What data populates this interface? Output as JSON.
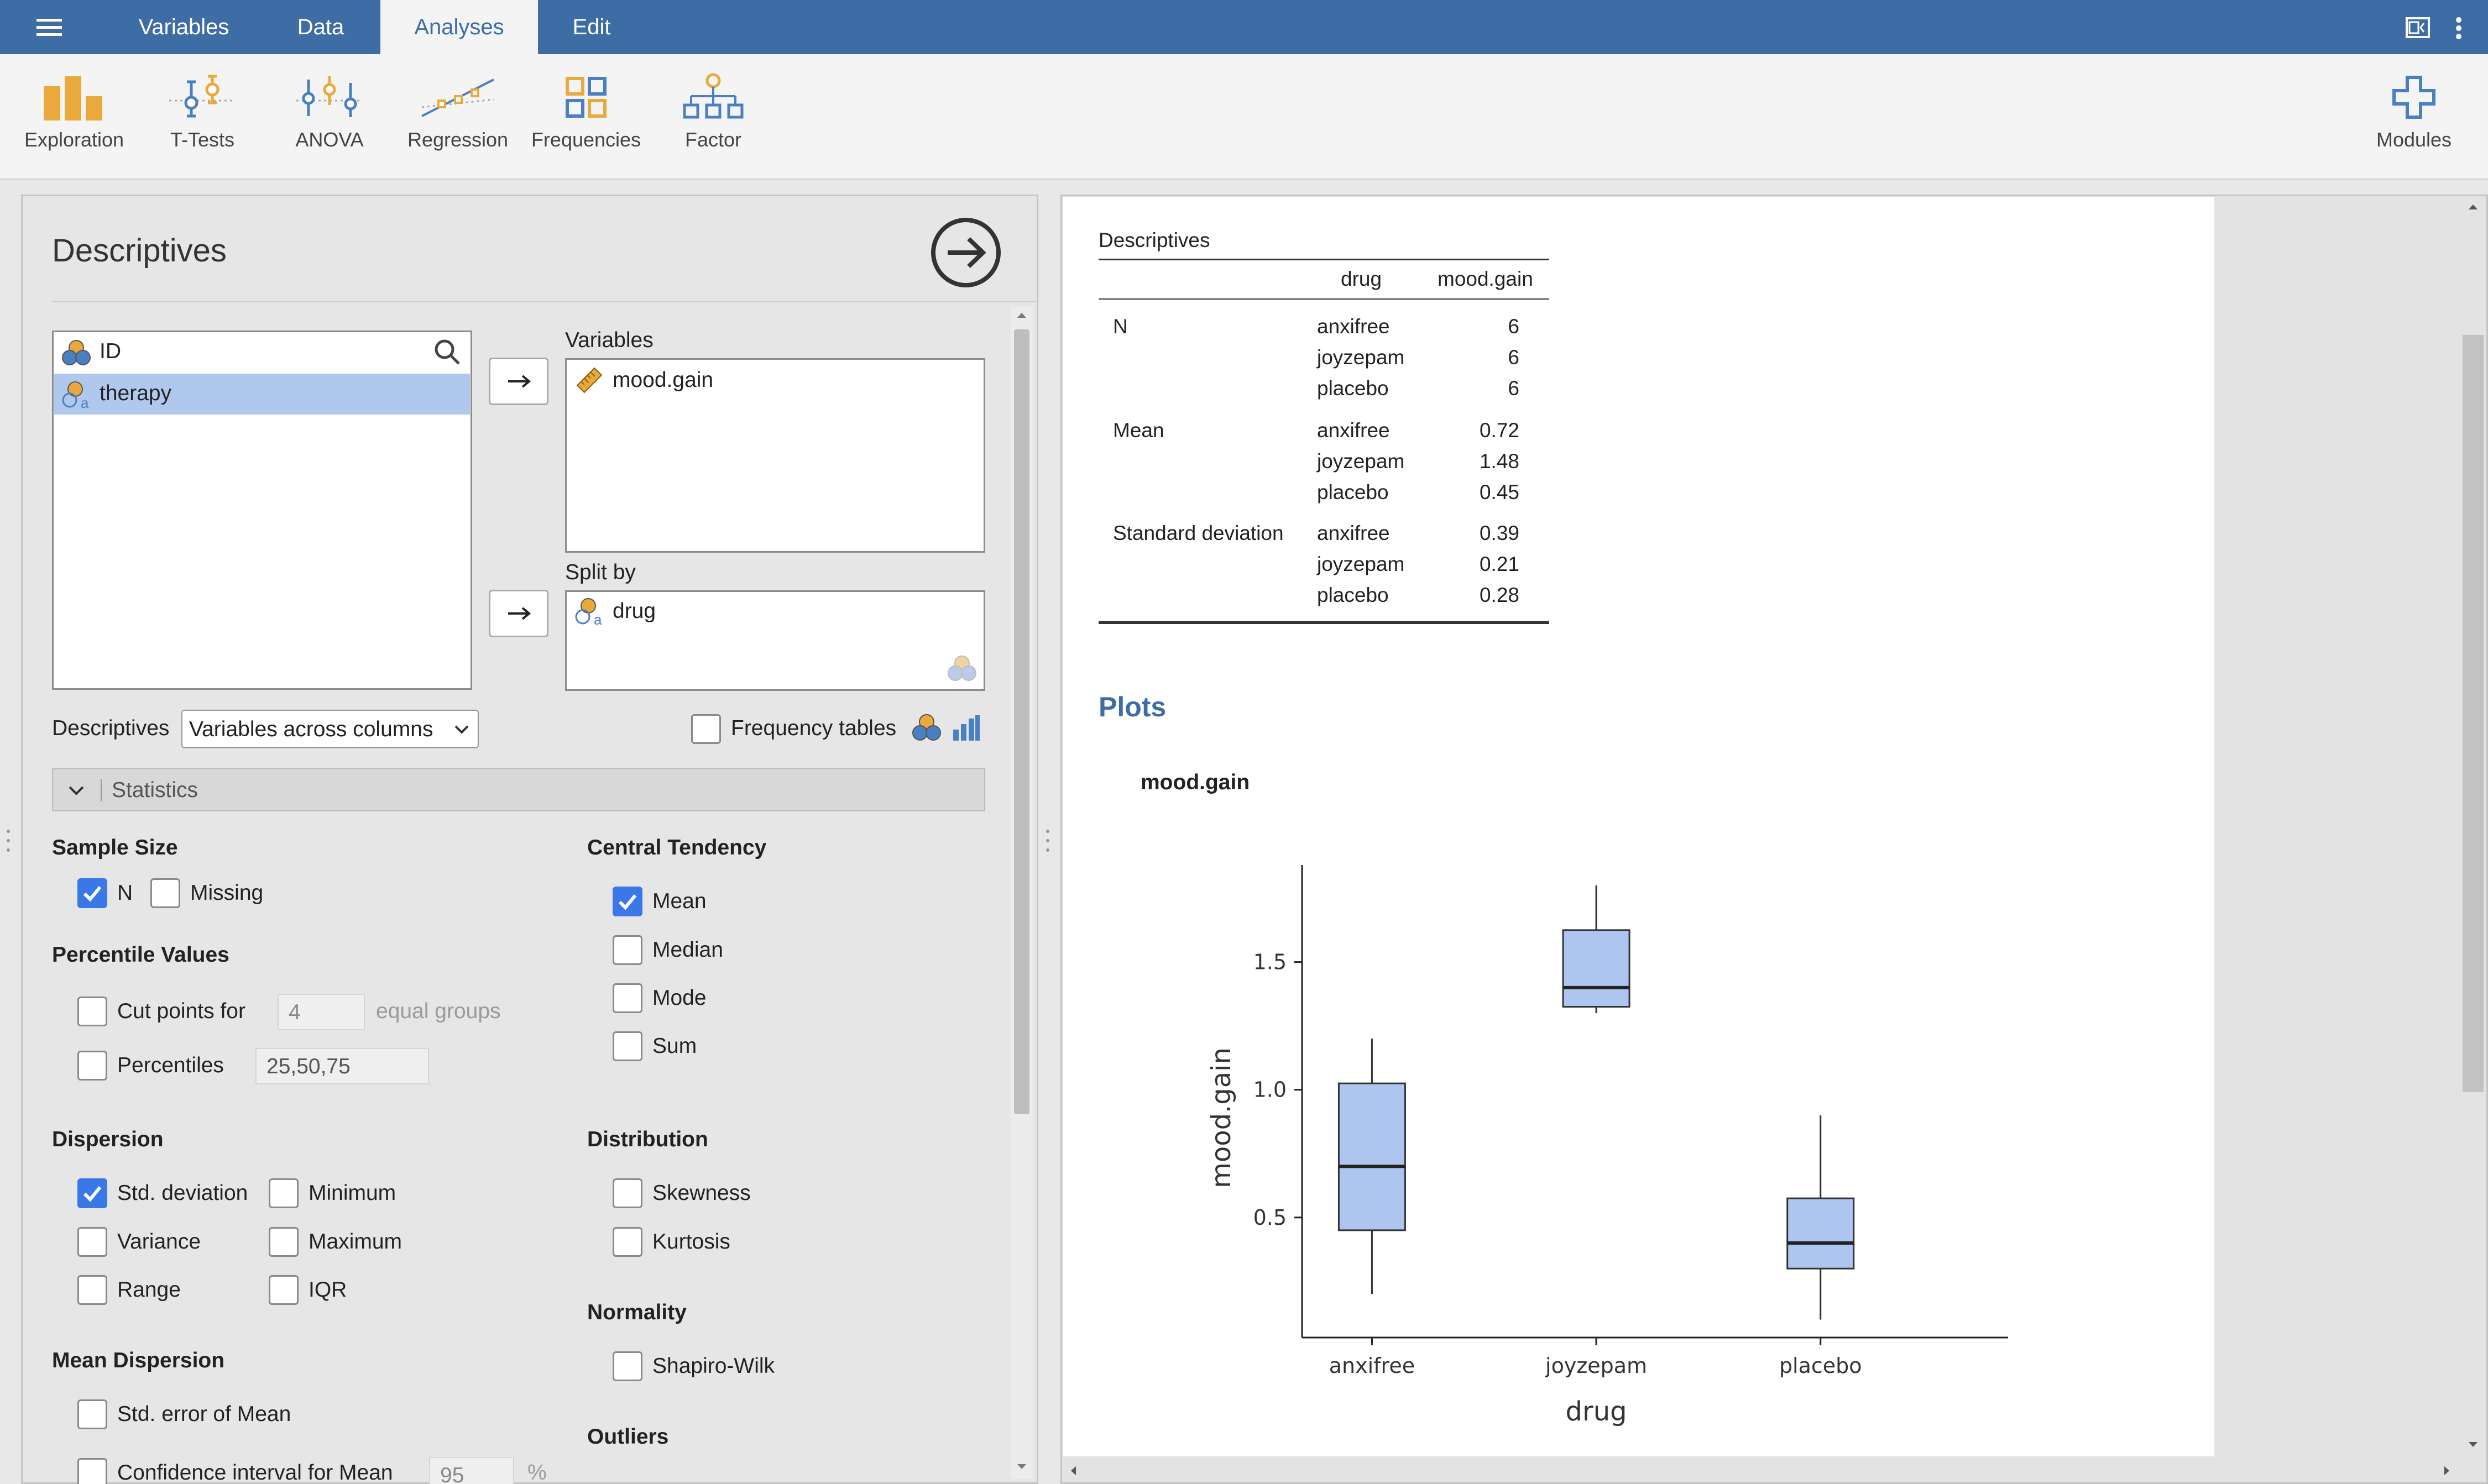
{
  "topbar": {
    "tabs": [
      "Variables",
      "Data",
      "Analyses",
      "Edit"
    ],
    "active_tab": "Analyses"
  },
  "ribbon": {
    "buttons": [
      "Exploration",
      "T-Tests",
      "ANOVA",
      "Regression",
      "Frequencies",
      "Factor"
    ],
    "modules_label": "Modules"
  },
  "options": {
    "title": "Descriptives",
    "source_list": {
      "items": [
        {
          "label": "ID",
          "selected": false
        },
        {
          "label": "therapy",
          "selected": true
        }
      ]
    },
    "variables_label": "Variables",
    "variables_items": [
      "mood.gain"
    ],
    "split_label": "Split by",
    "split_items": [
      "drug"
    ],
    "descriptives_label": "Descriptives",
    "descriptives_select": "Variables across columns",
    "frequency_tables_label": "Frequency tables",
    "frequency_tables_checked": false,
    "statistics_header": "Statistics",
    "sample_size": {
      "title": "Sample Size",
      "n_label": "N",
      "n_checked": true,
      "missing_label": "Missing",
      "missing_checked": false
    },
    "percentile_values": {
      "title": "Percentile Values",
      "cut_points_label": "Cut points for",
      "cut_points_value": "4",
      "cut_points_suffix": "equal groups",
      "percentiles_label": "Percentiles",
      "percentiles_value": "25,50,75"
    },
    "dispersion": {
      "title": "Dispersion",
      "std_label": "Std. deviation",
      "std_checked": true,
      "minimum_label": "Minimum",
      "variance_label": "Variance",
      "maximum_label": "Maximum",
      "range_label": "Range",
      "iqr_label": "IQR"
    },
    "mean_dispersion": {
      "title": "Mean Dispersion",
      "se_label": "Std. error of Mean",
      "ci_label": "Confidence interval for Mean",
      "ci_value": "95",
      "ci_suffix": "%"
    },
    "central_tendency": {
      "title": "Central Tendency",
      "mean_label": "Mean",
      "mean_checked": true,
      "median_label": "Median",
      "mode_label": "Mode",
      "sum_label": "Sum"
    },
    "distribution": {
      "title": "Distribution",
      "skewness_label": "Skewness",
      "kurtosis_label": "Kurtosis"
    },
    "normality": {
      "title": "Normality",
      "shapiro_label": "Shapiro-Wilk"
    },
    "outliers": {
      "title": "Outliers"
    }
  },
  "results": {
    "table_title": "Descriptives",
    "col_headers": [
      "drug",
      "mood.gain"
    ],
    "groups": [
      {
        "stat": "N",
        "rows": [
          [
            "anxifree",
            "6"
          ],
          [
            "joyzepam",
            "6"
          ],
          [
            "placebo",
            "6"
          ]
        ]
      },
      {
        "stat": "Mean",
        "rows": [
          [
            "anxifree",
            "0.72"
          ],
          [
            "joyzepam",
            "1.48"
          ],
          [
            "placebo",
            "0.45"
          ]
        ]
      },
      {
        "stat": "Standard deviation",
        "rows": [
          [
            "anxifree",
            "0.39"
          ],
          [
            "joyzepam",
            "0.21"
          ],
          [
            "placebo",
            "0.28"
          ]
        ]
      }
    ],
    "plots_heading": "Plots",
    "plot_title": "mood.gain"
  },
  "chart_data": {
    "type": "boxplot",
    "title": "mood.gain",
    "xlabel": "drug",
    "ylabel": "mood.gain",
    "categories": [
      "anxifree",
      "joyzepam",
      "placebo"
    ],
    "boxes": [
      {
        "name": "anxifree",
        "whisker_low": 0.2,
        "q1": 0.45,
        "median": 0.7,
        "q3": 1.025,
        "whisker_high": 1.2
      },
      {
        "name": "joyzepam",
        "whisker_low": 1.3,
        "q1": 1.325,
        "median": 1.4,
        "q3": 1.625,
        "whisker_high": 1.8
      },
      {
        "name": "placebo",
        "whisker_low": 0.1,
        "q1": 0.3,
        "median": 0.4,
        "q3": 0.575,
        "whisker_high": 0.9
      }
    ],
    "yticks": [
      0.5,
      1.0,
      1.5
    ],
    "ytick_labels": [
      "0.5",
      "1.0",
      "1.5"
    ],
    "ylim": [
      0.03,
      1.88
    ],
    "colors": {
      "box_fill": "#aec6ef",
      "box_stroke": "#333333"
    }
  },
  "colors": {
    "topbar": "#3e6da6",
    "accent": "#3b78e7",
    "ribbon_icon": "#e9a93c",
    "plots_heading": "#3e6da6"
  }
}
